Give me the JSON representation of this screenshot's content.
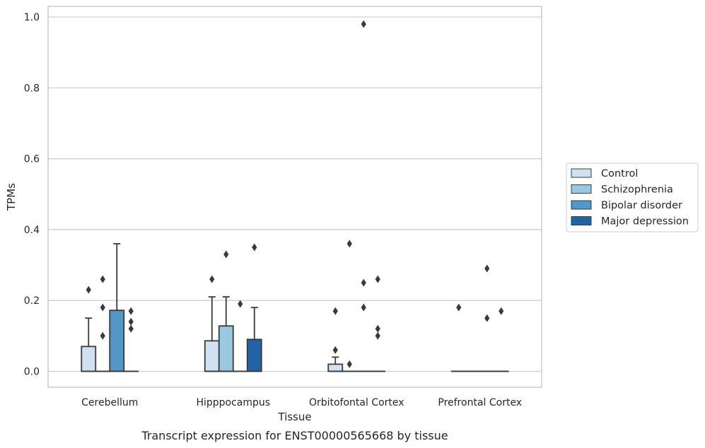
{
  "chart_data": {
    "type": "box",
    "xlabel": "Tissue",
    "ylabel": "TPMs",
    "caption": "Transcript expression for ENST00000565668 by tissue",
    "ylim": [
      -0.045,
      1.03
    ],
    "yticks": [
      0.0,
      0.2,
      0.4,
      0.6,
      0.8,
      1.0
    ],
    "ytick_labels": [
      "0.0",
      "0.2",
      "0.4",
      "0.6",
      "0.8",
      "1.0"
    ],
    "grid": "horizontal",
    "legend_position": "right",
    "categories": [
      "Cerebellum",
      "Hipppocampus",
      "Orbitofontal Cortex",
      "Prefrontal Cortex"
    ],
    "series": [
      {
        "name": "Control",
        "color": "#d0e1f2",
        "boxes": [
          {
            "q1": 0.0,
            "median": 0.0,
            "q3": 0.07,
            "whisker_low": 0.0,
            "whisker_high": 0.15,
            "outliers": [
              0.23
            ]
          },
          {
            "q1": 0.0,
            "median": 0.0,
            "q3": 0.086,
            "whisker_low": 0.0,
            "whisker_high": 0.21,
            "outliers": [
              0.26
            ]
          },
          {
            "q1": 0.0,
            "median": 0.0,
            "q3": 0.02,
            "whisker_low": 0.0,
            "whisker_high": 0.04,
            "outliers": [
              0.06,
              0.17
            ]
          },
          {
            "q1": 0.0,
            "median": 0.0,
            "q3": 0.0,
            "whisker_low": 0.0,
            "whisker_high": 0.0,
            "outliers": [
              0.18
            ]
          }
        ]
      },
      {
        "name": "Schizophrenia",
        "color": "#9ac8e0",
        "boxes": [
          {
            "q1": 0.0,
            "median": 0.0,
            "q3": 0.0,
            "whisker_low": 0.0,
            "whisker_high": 0.0,
            "outliers": [
              0.1,
              0.18,
              0.26
            ]
          },
          {
            "q1": 0.0,
            "median": 0.0,
            "q3": 0.128,
            "whisker_low": 0.0,
            "whisker_high": 0.21,
            "outliers": [
              0.33
            ]
          },
          {
            "q1": 0.0,
            "median": 0.0,
            "q3": 0.0,
            "whisker_low": 0.0,
            "whisker_high": 0.0,
            "outliers": [
              0.02,
              0.36
            ]
          },
          {
            "q1": 0.0,
            "median": 0.0,
            "q3": 0.0,
            "whisker_low": 0.0,
            "whisker_high": 0.0,
            "outliers": []
          }
        ]
      },
      {
        "name": "Bipolar disorder",
        "color": "#5297c6",
        "boxes": [
          {
            "q1": 0.0,
            "median": 0.0,
            "q3": 0.172,
            "whisker_low": 0.0,
            "whisker_high": 0.36,
            "outliers": []
          },
          {
            "q1": 0.0,
            "median": 0.0,
            "q3": 0.0,
            "whisker_low": 0.0,
            "whisker_high": 0.0,
            "outliers": [
              0.19
            ]
          },
          {
            "q1": 0.0,
            "median": 0.0,
            "q3": 0.0,
            "whisker_low": 0.0,
            "whisker_high": 0.0,
            "outliers": [
              0.18,
              0.25,
              0.98
            ]
          },
          {
            "q1": 0.0,
            "median": 0.0,
            "q3": 0.0,
            "whisker_low": 0.0,
            "whisker_high": 0.0,
            "outliers": [
              0.15,
              0.29
            ]
          }
        ]
      },
      {
        "name": "Major depression",
        "color": "#2163a6",
        "boxes": [
          {
            "q1": 0.0,
            "median": 0.0,
            "q3": 0.0,
            "whisker_low": 0.0,
            "whisker_high": 0.0,
            "outliers": [
              0.12,
              0.14,
              0.17
            ]
          },
          {
            "q1": 0.0,
            "median": 0.0,
            "q3": 0.09,
            "whisker_low": 0.0,
            "whisker_high": 0.18,
            "outliers": [
              0.35
            ]
          },
          {
            "q1": 0.0,
            "median": 0.0,
            "q3": 0.0,
            "whisker_low": 0.0,
            "whisker_high": 0.0,
            "outliers": [
              0.1,
              0.12,
              0.26
            ]
          },
          {
            "q1": 0.0,
            "median": 0.0,
            "q3": 0.0,
            "whisker_low": 0.0,
            "whisker_high": 0.0,
            "outliers": [
              0.17
            ]
          }
        ]
      }
    ]
  }
}
